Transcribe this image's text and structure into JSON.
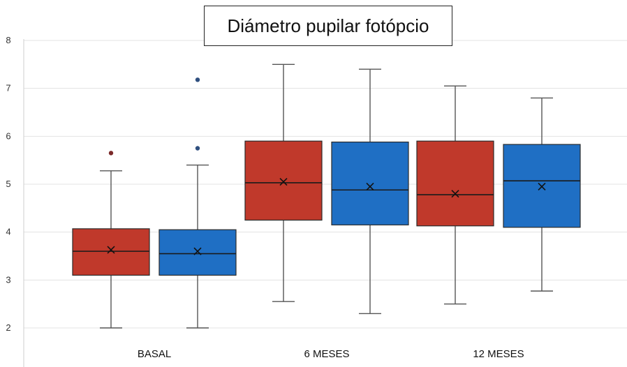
{
  "chart_data": {
    "type": "box",
    "title": "Diámetro pupilar fotópcio",
    "xlabel": "",
    "ylabel": "",
    "ylim": [
      2,
      8
    ],
    "yticks": [
      2,
      3,
      4,
      5,
      6,
      7,
      8
    ],
    "categories": [
      "BASAL",
      "6 MESES",
      "12 MESES"
    ],
    "grid": true,
    "series": [
      {
        "color": "#c0392b",
        "boxes": [
          {
            "min": 2.0,
            "q1": 3.1,
            "median": 3.6,
            "q3": 4.07,
            "max": 5.28,
            "mean": 3.63,
            "outliers": [
              5.65
            ]
          },
          {
            "min": 2.55,
            "q1": 4.25,
            "median": 5.03,
            "q3": 5.9,
            "max": 7.5,
            "mean": 5.05,
            "outliers": []
          },
          {
            "min": 2.5,
            "q1": 4.13,
            "median": 4.78,
            "q3": 5.9,
            "max": 7.05,
            "mean": 4.8,
            "outliers": []
          }
        ]
      },
      {
        "color": "#1f6fc4",
        "boxes": [
          {
            "min": 2.0,
            "q1": 3.1,
            "median": 3.55,
            "q3": 4.05,
            "max": 5.4,
            "mean": 3.6,
            "outliers": [
              5.75,
              7.18
            ]
          },
          {
            "min": 2.3,
            "q1": 4.15,
            "median": 4.88,
            "q3": 5.88,
            "max": 7.4,
            "mean": 4.95,
            "outliers": []
          },
          {
            "min": 2.77,
            "q1": 4.1,
            "median": 5.07,
            "q3": 5.83,
            "max": 6.8,
            "mean": 4.95,
            "outliers": []
          }
        ]
      }
    ]
  }
}
